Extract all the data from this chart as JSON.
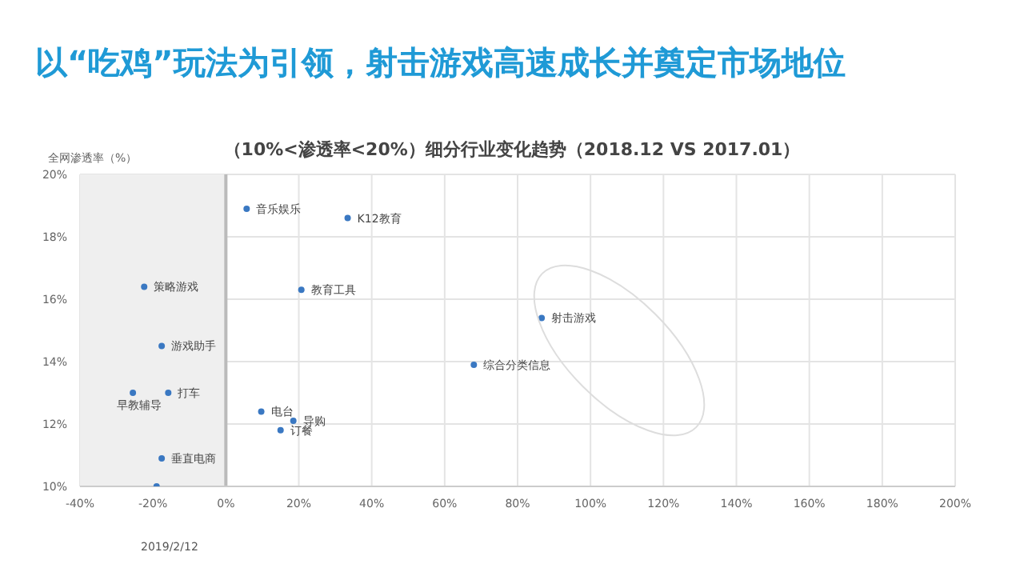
{
  "chart_data": {
    "type": "scatter",
    "title": "以“吃鸡”玩法为引领，射击游戏高速成长并奠定市场地位",
    "subtitle": "（10%<渗透率<20%）细分行业变化趋势（2018.12  VS 2017.01）",
    "ylabel": "全网渗透率（%）",
    "x": [
      5.7,
      33.4,
      -22.4,
      20.7,
      -17.6,
      68,
      86.6,
      -15.8,
      -25.5,
      9.7,
      18.5,
      15,
      -17.6,
      -19
    ],
    "series": [
      {
        "color": "#3a78c2",
        "values": [
          18.9,
          18.6,
          16.4,
          16.3,
          14.5,
          13.9,
          15.4,
          13.0,
          13.0,
          12.4,
          12.1,
          11.8,
          10.9,
          10.0
        ]
      }
    ],
    "annotations": [
      {
        "text": "音乐娱乐",
        "x": 5.7,
        "y": 18.9
      },
      {
        "text": "K12教育",
        "x": 33.4,
        "y": 18.6
      },
      {
        "text": "策略游戏",
        "x": -22.4,
        "y": 16.4
      },
      {
        "text": "教育工具",
        "x": 20.7,
        "y": 16.3
      },
      {
        "text": "游戏助手",
        "x": -17.6,
        "y": 14.5
      },
      {
        "text": "综合分类信息",
        "x": 68,
        "y": 13.9
      },
      {
        "text": "射击游戏",
        "x": 86.6,
        "y": 15.4
      },
      {
        "text": "打车",
        "x": -15.8,
        "y": 13.0
      },
      {
        "text": "早教辅导",
        "x": -25.5,
        "y": 13.0
      },
      {
        "text": "电台",
        "x": 9.7,
        "y": 12.4
      },
      {
        "text": "导购",
        "x": 18.5,
        "y": 12.1
      },
      {
        "text": "订餐",
        "x": 15,
        "y": 11.8
      },
      {
        "text": "垂直电商",
        "x": -17.6,
        "y": 10.9
      },
      "2019/2/12"
    ],
    "xlim": [
      -40,
      200
    ],
    "xticks": [
      {
        "value": -40,
        "label": "-40%"
      },
      {
        "value": -20,
        "label": "-20%"
      },
      {
        "value": 0,
        "label": "0%"
      },
      {
        "value": 20,
        "label": "20%"
      },
      {
        "value": 40,
        "label": "40%"
      },
      {
        "value": 60,
        "label": "60%"
      },
      {
        "value": 80,
        "label": "80%"
      },
      {
        "value": 100,
        "label": "100%"
      },
      {
        "value": 120,
        "label": "120%"
      },
      {
        "value": 140,
        "label": "140%"
      },
      {
        "value": 160,
        "label": "160%"
      },
      {
        "value": 180,
        "label": "180%"
      },
      {
        "value": 200,
        "label": "200%"
      }
    ],
    "ylim": [
      10,
      20
    ],
    "yticks": [
      {
        "value": 10,
        "label": "10%"
      },
      {
        "value": 12,
        "label": "12%"
      },
      {
        "value": 14,
        "label": "14%"
      },
      {
        "value": 16,
        "label": "16%"
      },
      {
        "value": 18,
        "label": "18%"
      },
      {
        "value": 20,
        "label": "20%"
      }
    ],
    "bands": [
      {
        "axis": "x",
        "from": -40,
        "to": 0,
        "color": "#efefef"
      }
    ],
    "ref_lines": [
      {
        "axis": "x",
        "value": 0,
        "color": "#bbbbbb"
      }
    ],
    "grid": true,
    "marker": "circle"
  }
}
